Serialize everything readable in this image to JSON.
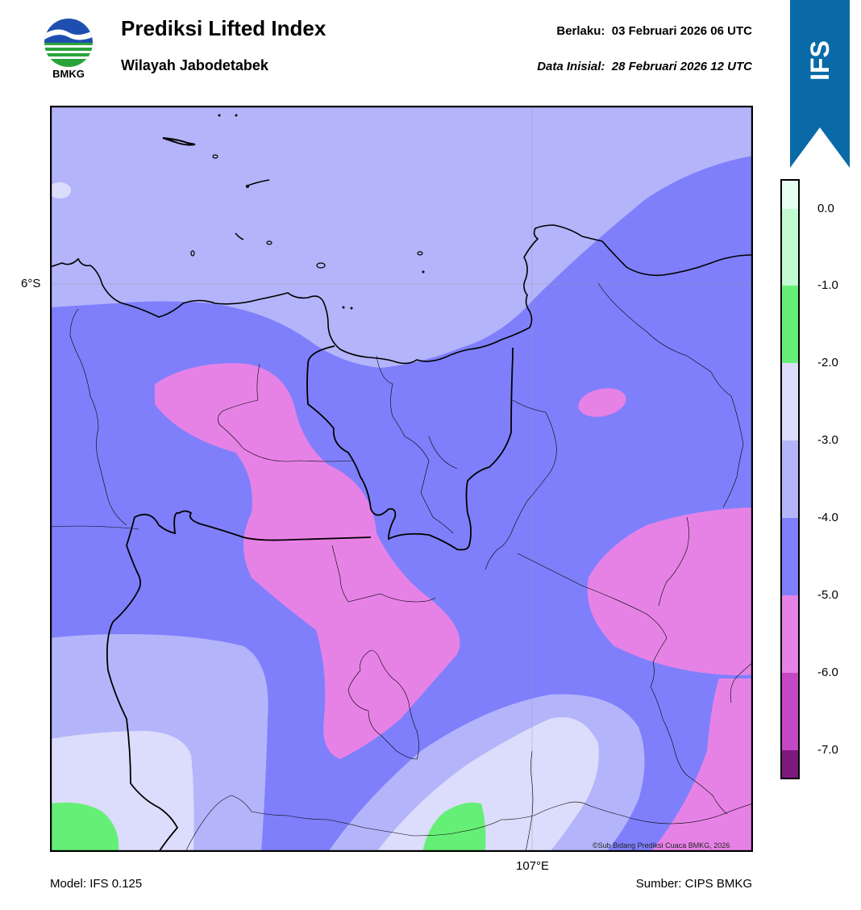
{
  "header": {
    "title": "Prediksi Lifted Index",
    "subtitle": "Wilayah Jabodetabek",
    "valid_label": "Berlaku:",
    "valid_value": "03 Februari 2026 06 UTC",
    "init_label": "Data Inisial:",
    "init_value": "28 Februari 2026 12 UTC"
  },
  "logo": {
    "text": "BMKG",
    "icon": "bmkg-logo-icon"
  },
  "badge": {
    "text": "IFS",
    "color": "#0a6aa8"
  },
  "axes": {
    "lat_label": "6°S",
    "lon_label": "107°E"
  },
  "colorbar": {
    "ticks": [
      "0.0",
      "-1.0",
      "-2.0",
      "-3.0",
      "-4.0",
      "-5.0",
      "-6.0",
      "-7.0"
    ],
    "colors": {
      "ge_0": "#e6fff0",
      "0_to_-1": "#c2fad2",
      "-1_to_-2": "#66ef77",
      "-2_to_-3": "#dcdcfc",
      "-3_to_-4": "#b4b4fb",
      "-4_to_-5": "#7f7ffb",
      "-5_to_-6": "#e682e6",
      "-6_to_-7": "#c448c4",
      "lt_-7": "#7e1a7e"
    }
  },
  "map_colors": {
    "li_-3_-4": "#b4b4fb",
    "li_-4_-5": "#7f7ffb",
    "li_-5_-6": "#e682e6",
    "li_-2_-3": "#dcdcfc",
    "li_-1_-2": "#66ef77"
  },
  "footer": {
    "model": "Model: IFS 0.125",
    "source": "Sumber: CIPS BMKG",
    "copyright": "©Sub Bidang Prediksi Cuaca BMKG, 2026"
  }
}
